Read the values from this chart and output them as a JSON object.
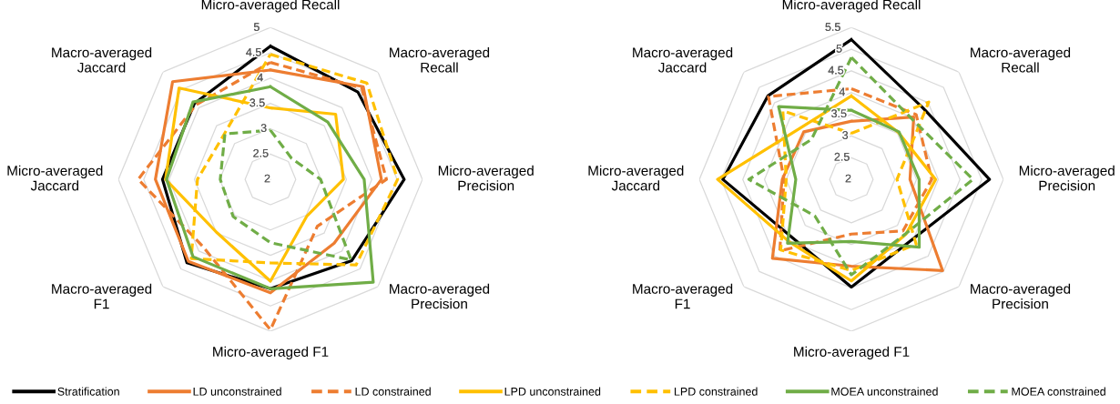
{
  "chart_data": [
    {
      "type": "radar",
      "categories": [
        "Micro-averaged Recall",
        "Macro-averaged Recall",
        "Micro-averaged Precision",
        "Macro-averaged Precision",
        "Micro-averaged F1",
        "Macro-averaged F1",
        "Micro-averaged Jaccard",
        "Macro-averaged Jaccard"
      ],
      "ylim": [
        2,
        5
      ],
      "yticks": [
        2,
        2.5,
        3,
        3.5,
        4,
        4.5,
        5
      ],
      "grid": true,
      "legend": "bottom",
      "marker": "none",
      "series": [
        {
          "name": "Stratification",
          "color": "#000000",
          "line_style": "solid",
          "values": [
            4.63,
            4.44,
            4.64,
            4.27,
            4.16,
            4.33,
            4.13,
            4.12
          ]
        },
        {
          "name": "LD unconstrained",
          "color": "#ed7d31",
          "line_style": "solid",
          "values": [
            4.16,
            4.59,
            4.19,
            3.78,
            4.24,
            4.29,
            4.27,
            4.73
          ]
        },
        {
          "name": "LD constrained",
          "color": "#ed7d31",
          "line_style": "dashed",
          "values": [
            4.31,
            4.55,
            4.29,
            3.31,
            4.97,
            3.88,
            4.61,
            4.08
          ]
        },
        {
          "name": "LPD unconstrained",
          "color": "#ffc000",
          "line_style": "solid",
          "values": [
            3.41,
            3.82,
            3.44,
            3.02,
            4.01,
            3.49,
            4.07,
            4.55
          ]
        },
        {
          "name": "LPD constrained",
          "color": "#ffc000",
          "line_style": "dashed",
          "values": [
            4.47,
            4.69,
            4.51,
            4.39,
            3.65,
            4.21,
            3.44,
            3.28
          ]
        },
        {
          "name": "MOEA unconstrained",
          "color": "#70ad47",
          "line_style": "solid",
          "values": [
            3.83,
            3.6,
            3.85,
            4.87,
            4.16,
            4.16,
            4.05,
            4.16
          ]
        },
        {
          "name": "MOEA constrained",
          "color": "#70ad47",
          "line_style": "dashed",
          "values": [
            2.97,
            2.59,
            2.99,
            4.25,
            3.25,
            3.04,
            2.99,
            3.27
          ]
        }
      ]
    },
    {
      "type": "radar",
      "categories": [
        "Micro-averaged Recall",
        "Macro-averaged Recall",
        "Micro-averaged Precision",
        "Macro-averaged Precision",
        "Micro-averaged F1",
        "Macro-averaged F1",
        "Micro-averaged Jaccard",
        "Macro-averaged Jaccard"
      ],
      "ylim": [
        2,
        5.5
      ],
      "yticks": [
        2,
        2.5,
        3,
        3.5,
        4,
        4.5,
        5,
        5.5
      ],
      "grid": true,
      "legend": "bottom",
      "marker": "none",
      "series": [
        {
          "name": "Stratification",
          "color": "#000000",
          "line_style": "solid",
          "values": [
            5.22,
            4.33,
            5.18,
            3.97,
            4.48,
            3.91,
            4.96,
            4.72
          ]
        },
        {
          "name": "LD unconstrained",
          "color": "#ed7d31",
          "line_style": "solid",
          "values": [
            3.34,
            4.03,
            3.35,
            4.97,
            4.0,
            4.57,
            3.59,
            3.55
          ]
        },
        {
          "name": "LD constrained",
          "color": "#ed7d31",
          "line_style": "dashed",
          "values": [
            4.09,
            4.11,
            3.85,
            3.68,
            3.26,
            4.33,
            3.55,
            4.7
          ]
        },
        {
          "name": "LPD unconstrained",
          "color": "#ffc000",
          "line_style": "solid",
          "values": [
            3.92,
            3.53,
            3.94,
            3.78,
            4.34,
            4.03,
            5.08,
            3.67
          ]
        },
        {
          "name": "LPD constrained",
          "color": "#ffc000",
          "line_style": "dashed",
          "values": [
            3.06,
            4.52,
            3.05,
            4.11,
            4.1,
            4.3,
            3.5,
            4.23
          ]
        },
        {
          "name": "MOEA unconstrained",
          "color": "#70ad47",
          "line_style": "solid",
          "values": [
            3.59,
            3.55,
            3.56,
            4.21,
            3.43,
            4.08,
            3.28,
            4.37
          ]
        },
        {
          "name": "MOEA constrained",
          "color": "#70ad47",
          "line_style": "dashed",
          "values": [
            4.81,
            3.97,
            4.8,
            3.77,
            4.2,
            3.19,
            4.36,
            3.3
          ]
        }
      ]
    }
  ]
}
